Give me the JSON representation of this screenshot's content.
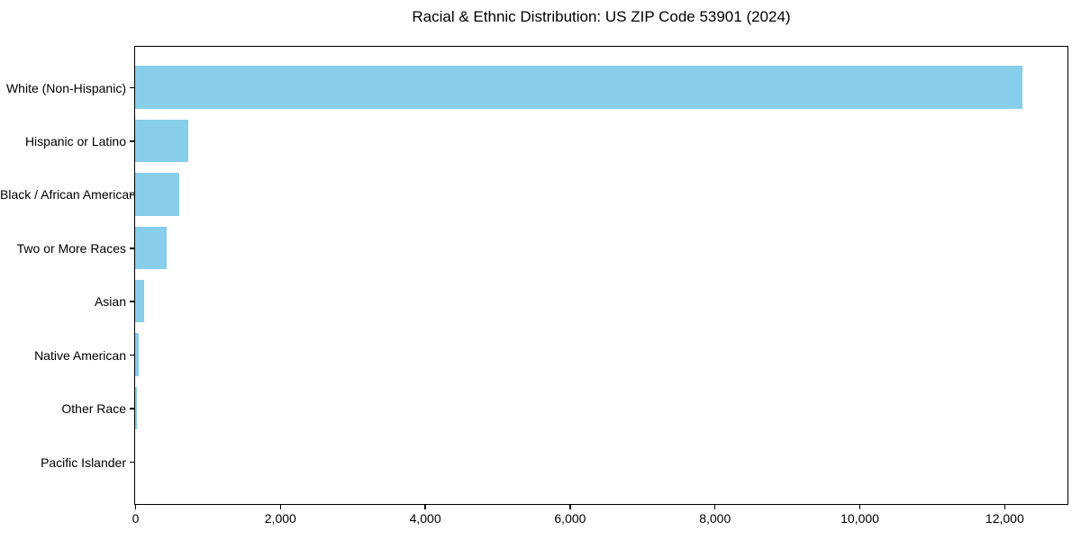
{
  "chart_data": {
    "type": "bar",
    "orientation": "horizontal",
    "title": "Racial & Ethnic Distribution: US ZIP Code 53901 (2024)",
    "categories": [
      "White (Non-Hispanic)",
      "Hispanic or Latino",
      "Black / African American",
      "Two or More Races",
      "Asian",
      "Native American",
      "Other Race",
      "Pacific Islander"
    ],
    "values": [
      12250,
      740,
      610,
      430,
      120,
      50,
      30,
      0
    ],
    "bar_color": "#87CEEB",
    "xlabel": "",
    "ylabel": "",
    "xlim": [
      0,
      12860
    ],
    "x_ticks": [
      0,
      2000,
      4000,
      6000,
      8000,
      10000,
      12000
    ],
    "x_tick_labels": [
      "0",
      "2,000",
      "4,000",
      "6,000",
      "8,000",
      "10,000",
      "12,000"
    ],
    "grid": false,
    "legend": false,
    "axis_color": "#000000",
    "text_color": "#000000",
    "background_color": "#ffffff"
  }
}
